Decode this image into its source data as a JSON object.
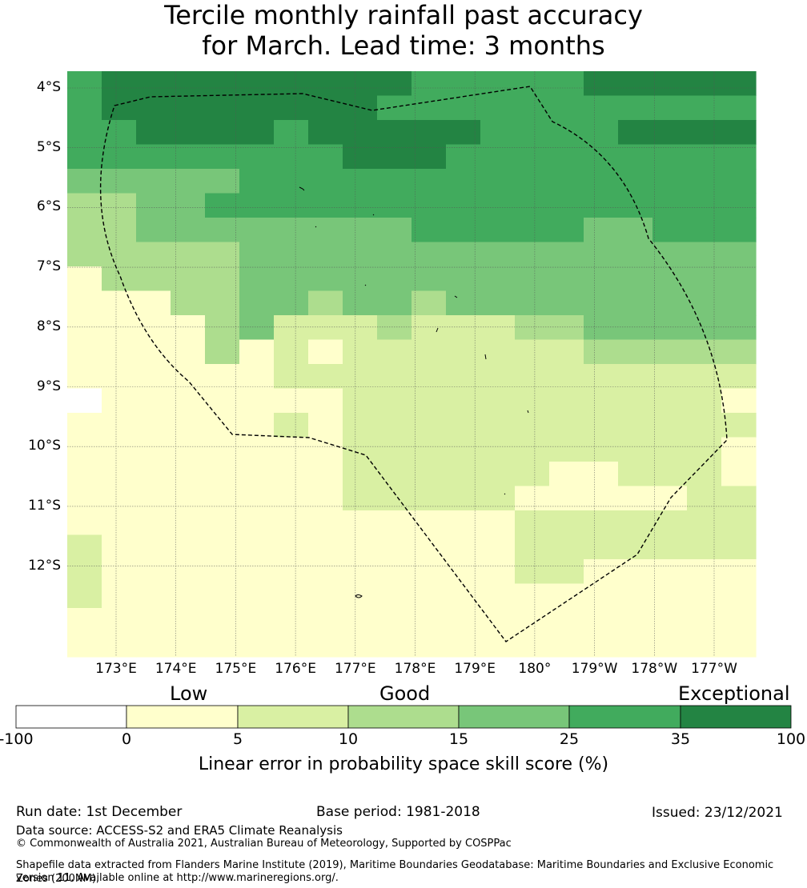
{
  "title": {
    "line1": "Tercile monthly rainfall past accuracy",
    "line2": "for March. Lead time: 3 months"
  },
  "map": {
    "lat_labels": [
      "4°S",
      "5°S",
      "6°S",
      "7°S",
      "8°S",
      "9°S",
      "10°S",
      "11°S",
      "12°S"
    ],
    "lon_labels": [
      "173°E",
      "174°E",
      "175°E",
      "176°E",
      "177°E",
      "178°E",
      "179°E",
      "180°",
      "179°W",
      "178°W",
      "177°W"
    ],
    "categories": {
      "0": {
        "range": "-100 to 0",
        "color": "#ffffff"
      },
      "1": {
        "range": "0 to 5",
        "color": "#ffffcc"
      },
      "2": {
        "range": "5 to 10",
        "color": "#d9f0a3"
      },
      "3": {
        "range": "10 to 15",
        "color": "#addd8e"
      },
      "4": {
        "range": "15 to 25",
        "color": "#78c679"
      },
      "5": {
        "range": "25 to 35",
        "color": "#41ab5d"
      },
      "6": {
        "range": "35 to 100",
        "color": "#238443"
      }
    },
    "grid": [
      "56666666665555566666",
      "56666666655555555555",
      "55666656666655556666",
      "55555555666555555555",
      "44444555555555555555",
      "33445555555555555555",
      "33444444445555544555",
      "33333444444444444444",
      "13333444444444444444",
      "11133443443444444444",
      "11113422232223344444",
      "11113121222222233333",
      "11111122222222222222",
      "01111111222222222221",
      "11111121222222222222",
      "11111111222222222221",
      "11111111222222112221",
      "11111111222221111122",
      "11111111111112222222",
      "21111111111112222222",
      "21111111111112211111",
      "21111111111111111111",
      "11111111111111111111",
      "11111111111111111111"
    ]
  },
  "colorbar": {
    "category_labels": [
      "Low",
      "Good",
      "Exceptional"
    ],
    "ticks": [
      "-100",
      "0",
      "5",
      "10",
      "15",
      "25",
      "35",
      "100"
    ],
    "colors": [
      "#ffffff",
      "#ffffcc",
      "#d9f0a3",
      "#addd8e",
      "#78c679",
      "#41ab5d",
      "#238443"
    ],
    "title": "Linear error in probability space skill score (%)"
  },
  "footer": {
    "run_date": "Run date: 1st December",
    "base_period": "Base period: 1981-2018",
    "issued": "Issued: 23/12/2021",
    "data_source": "Data source: ACCESS-S2 and ERA5 Climate Reanalysis",
    "copyright": "© Commonwealth of Australia 2021, Australian Bureau of Meteorology, Supported by COSPPac",
    "shapefile_line1": "Shapefile data extracted from Flanders Marine Institute (2019), Maritime Boundaries Geodatabase: Maritime Boundaries and Exclusive Economic Zones (200NM),",
    "shapefile_line2": "version 11. Available online at http://www.marineregions.org/."
  }
}
